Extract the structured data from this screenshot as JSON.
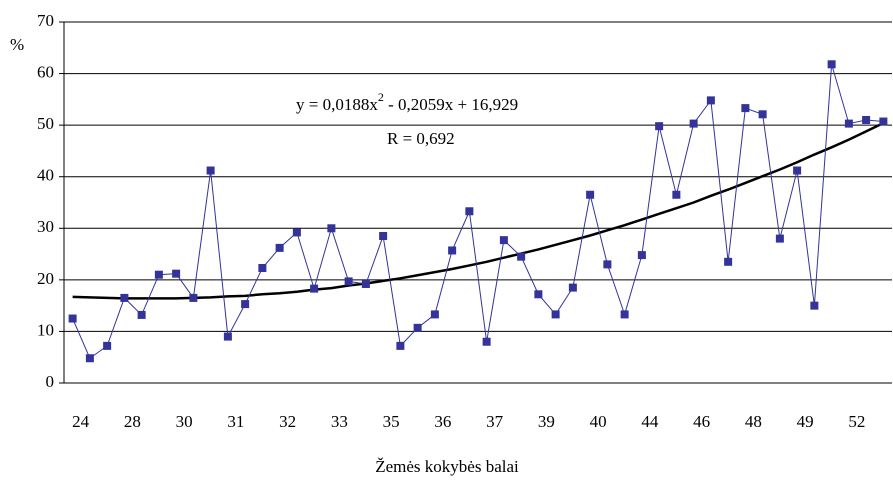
{
  "chart_data": {
    "type": "line",
    "y_axis_label": "%",
    "x_axis_label": "Žemės kokybės balai",
    "equation": {
      "base": "y = 0,0188x",
      "superscript": "2",
      "rest": " - 0,2059x + 16,929"
    },
    "r_label": "R = 0,692",
    "categories": [
      "24",
      null,
      null,
      "28",
      null,
      null,
      "30",
      null,
      null,
      "31",
      null,
      null,
      "32",
      null,
      null,
      "33",
      null,
      null,
      "35",
      null,
      null,
      "36",
      null,
      null,
      "37",
      null,
      null,
      "39",
      null,
      null,
      "40",
      null,
      null,
      "44",
      null,
      null,
      "46",
      null,
      null,
      "48",
      null,
      null,
      "49",
      null,
      null,
      "52",
      null,
      null
    ],
    "series": [
      {
        "color": "#333399",
        "marker": "square",
        "values": [
          12.5,
          4.8,
          7.2,
          16.5,
          13.2,
          21,
          21.2,
          16.5,
          41.2,
          9,
          15.3,
          22.3,
          26.2,
          29.2,
          18.3,
          30,
          19.7,
          19.2,
          28.5,
          7.2,
          10.7,
          13.3,
          25.7,
          33.3,
          8,
          27.7,
          24.5,
          17.2,
          13.3,
          18.5,
          36.5,
          23,
          13.3,
          24.8,
          49.8,
          36.5,
          50.3,
          54.8,
          23.5,
          53.3,
          52.1,
          28,
          41.2,
          15,
          61.8,
          50.3,
          51,
          50.7
        ]
      },
      {
        "color": "#000000",
        "marker": "none",
        "values": [
          16.7,
          16.6,
          16.5,
          16.4,
          16.4,
          16.4,
          16.4,
          16.5,
          16.6,
          16.8,
          16.9,
          17.2,
          17.4,
          17.7,
          18.1,
          18.4,
          18.9,
          19.3,
          19.8,
          20.3,
          20.9,
          21.5,
          22.1,
          22.8,
          23.5,
          24.3,
          25.1,
          25.9,
          26.8,
          27.7,
          28.6,
          29.6,
          30.6,
          31.7,
          32.8,
          33.9,
          35.0,
          36.3,
          37.5,
          38.8,
          40.1,
          41.4,
          42.8,
          44.3,
          45.7,
          47.2,
          48.8,
          50.4
        ]
      }
    ],
    "ylim": [
      0,
      70
    ],
    "yticks": [
      0,
      10,
      20,
      30,
      40,
      50,
      60,
      70
    ],
    "grid": true
  }
}
